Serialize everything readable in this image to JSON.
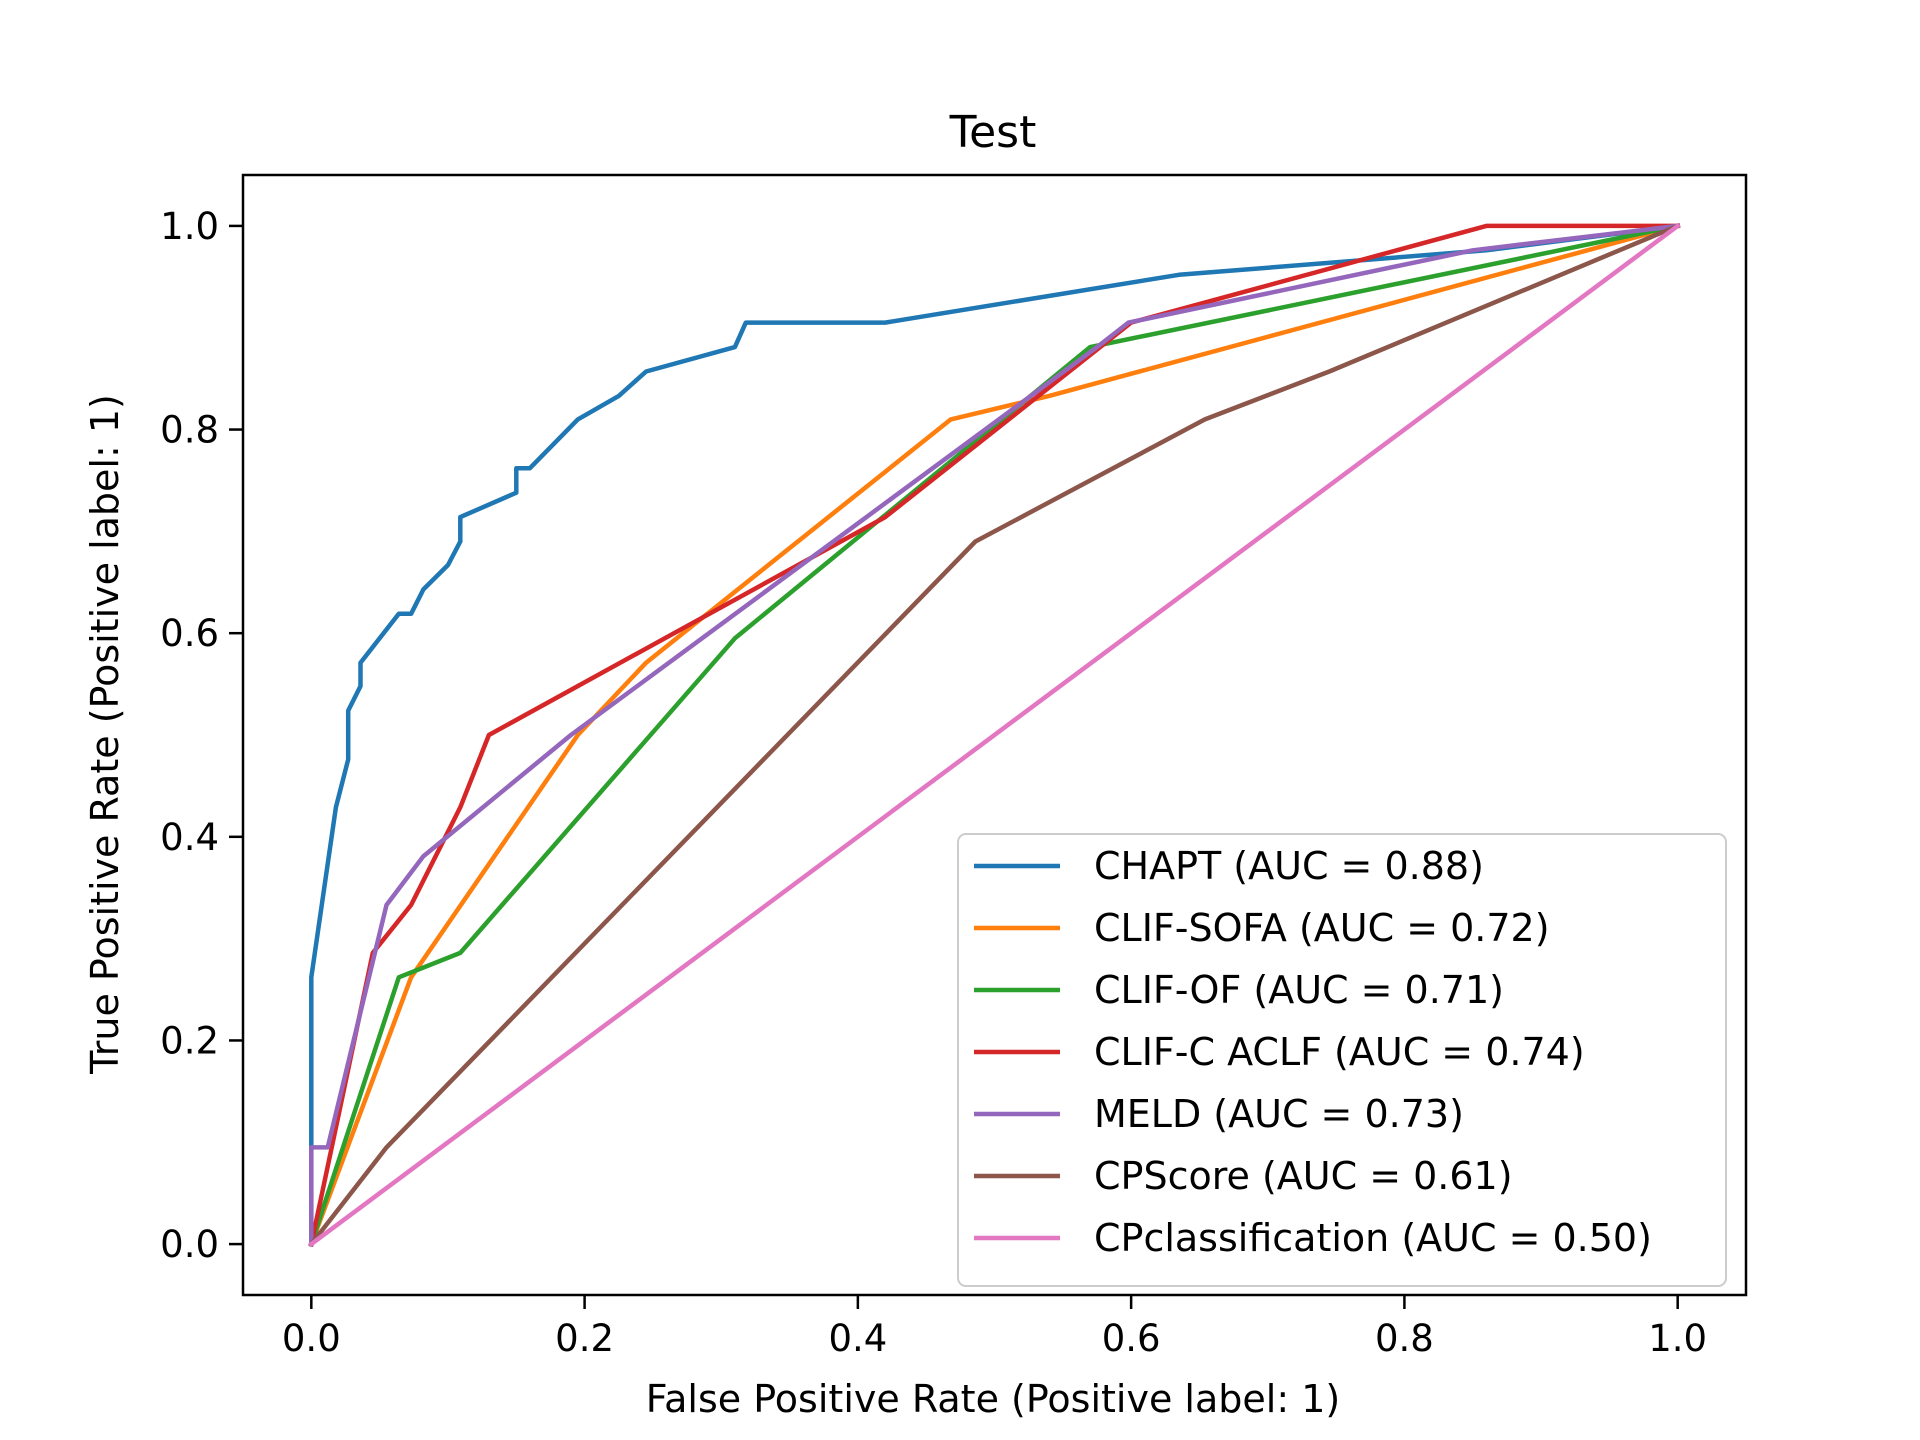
{
  "chart_data": {
    "type": "line",
    "title": "Test",
    "xlabel": "False Positive Rate (Positive label: 1)",
    "ylabel": "True Positive Rate (Positive label: 1)",
    "xlim": [
      -0.05,
      1.05
    ],
    "ylim": [
      -0.05,
      1.05
    ],
    "x_ticks": [
      "0.0",
      "0.2",
      "0.4",
      "0.6",
      "0.8",
      "1.0"
    ],
    "y_ticks": [
      "0.0",
      "0.2",
      "0.4",
      "0.6",
      "0.8",
      "1.0"
    ],
    "grid": false,
    "legend_position": "lower-right",
    "series": [
      {
        "name": "CHAPT (AUC = 0.88)",
        "color": "#1f77b4",
        "points": [
          [
            0,
            0
          ],
          [
            0,
            0.262
          ],
          [
            0.018,
            0.429
          ],
          [
            0.027,
            0.476
          ],
          [
            0.027,
            0.524
          ],
          [
            0.036,
            0.548
          ],
          [
            0.036,
            0.571
          ],
          [
            0.064,
            0.619
          ],
          [
            0.073,
            0.619
          ],
          [
            0.082,
            0.643
          ],
          [
            0.1,
            0.667
          ],
          [
            0.109,
            0.69
          ],
          [
            0.109,
            0.714
          ],
          [
            0.15,
            0.738
          ],
          [
            0.15,
            0.762
          ],
          [
            0.16,
            0.762
          ],
          [
            0.195,
            0.81
          ],
          [
            0.225,
            0.833
          ],
          [
            0.245,
            0.857
          ],
          [
            0.31,
            0.881
          ],
          [
            0.318,
            0.905
          ],
          [
            0.42,
            0.905
          ],
          [
            0.635,
            0.952
          ],
          [
            0.86,
            0.976
          ],
          [
            1.0,
            1.0
          ]
        ]
      },
      {
        "name": "CLIF-SOFA (AUC = 0.72)",
        "color": "#ff7f0e",
        "points": [
          [
            0,
            0
          ],
          [
            0.073,
            0.262
          ],
          [
            0.195,
            0.5
          ],
          [
            0.245,
            0.571
          ],
          [
            0.468,
            0.81
          ],
          [
            0.54,
            0.833
          ],
          [
            1.0,
            1.0
          ]
        ]
      },
      {
        "name": "CLIF-OF (AUC = 0.71)",
        "color": "#2ca02c",
        "points": [
          [
            0,
            0
          ],
          [
            0.064,
            0.262
          ],
          [
            0.109,
            0.286
          ],
          [
            0.31,
            0.595
          ],
          [
            0.57,
            0.881
          ],
          [
            1.0,
            1.0
          ]
        ]
      },
      {
        "name": "CLIF-C ACLF (AUC = 0.74)",
        "color": "#d62728",
        "points": [
          [
            0,
            0
          ],
          [
            0.045,
            0.286
          ],
          [
            0.073,
            0.333
          ],
          [
            0.109,
            0.429
          ],
          [
            0.13,
            0.5
          ],
          [
            0.42,
            0.714
          ],
          [
            0.6,
            0.905
          ],
          [
            0.86,
            1.0
          ],
          [
            1.0,
            1.0
          ]
        ]
      },
      {
        "name": "MELD (AUC = 0.73)",
        "color": "#9467bd",
        "points": [
          [
            0,
            0
          ],
          [
            0,
            0.095
          ],
          [
            0.012,
            0.095
          ],
          [
            0.055,
            0.333
          ],
          [
            0.082,
            0.381
          ],
          [
            0.19,
            0.5
          ],
          [
            0.575,
            0.881
          ],
          [
            0.598,
            0.905
          ],
          [
            0.85,
            0.976
          ],
          [
            1.0,
            1.0
          ]
        ]
      },
      {
        "name": "CPScore (AUC = 0.61)",
        "color": "#8c564b",
        "points": [
          [
            0,
            0
          ],
          [
            0.055,
            0.095
          ],
          [
            0.486,
            0.69
          ],
          [
            0.654,
            0.81
          ],
          [
            0.745,
            0.857
          ],
          [
            1.0,
            1.0
          ]
        ]
      },
      {
        "name": "CPclassification (AUC = 0.50)",
        "color": "#e377c2",
        "points": [
          [
            0,
            0
          ],
          [
            1.0,
            1.0
          ]
        ]
      }
    ]
  }
}
